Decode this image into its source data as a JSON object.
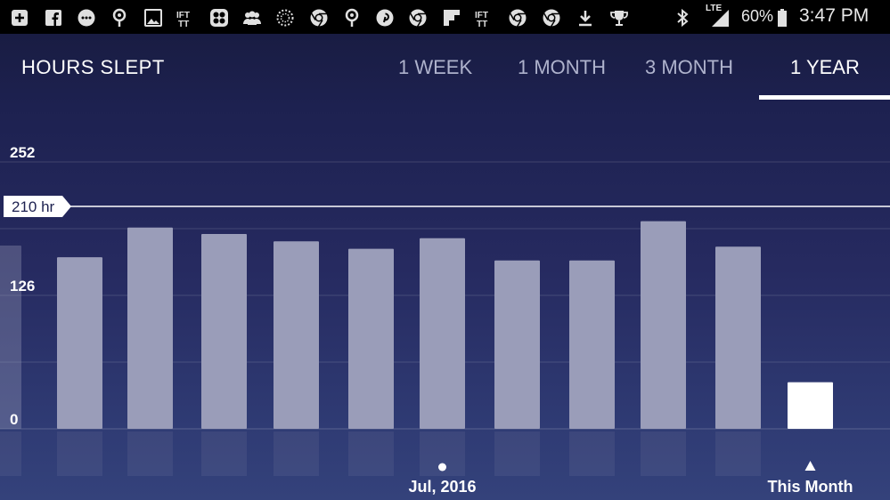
{
  "status_bar": {
    "left_icons": [
      "add-box-icon",
      "facebook-icon",
      "messenger-icon",
      "lock-notification-icon",
      "image-icon",
      "ifttt-icon",
      "app-icon",
      "group-icon",
      "sparkle-icon",
      "chrome-icon",
      "lock-notification-icon",
      "pinterest-icon",
      "chrome-icon",
      "flipboard-icon",
      "ifttt-icon",
      "chrome-icon",
      "chrome-icon",
      "download-icon",
      "trophy-icon"
    ],
    "right_icons": [
      "bluetooth-icon",
      "lte-signal-icon",
      "battery-icon"
    ],
    "network_label": "LTE",
    "battery_percent": "60%",
    "time": "3:47 PM"
  },
  "header": {
    "title": "HOURS SLEPT",
    "tabs": [
      {
        "label": "1 WEEK",
        "active": false
      },
      {
        "label": "1 MONTH",
        "active": false
      },
      {
        "label": "3 MONTH",
        "active": false
      },
      {
        "label": "1 YEAR",
        "active": true
      }
    ]
  },
  "chart_data": {
    "type": "bar",
    "title": "",
    "xlabel": "",
    "ylabel": "",
    "ylim": [
      0,
      252
    ],
    "yticks": [
      0,
      126,
      252
    ],
    "goal_line": {
      "value": 210,
      "label": "210 hr"
    },
    "categories": [
      "",
      "",
      "",
      "",
      "",
      "",
      "",
      "",
      "",
      "",
      "",
      ""
    ],
    "values": [
      173,
      162,
      190,
      184,
      177,
      170,
      180,
      159,
      159,
      196,
      172,
      44
    ],
    "highlight_index": 11,
    "x_labels": [
      {
        "index": 6,
        "label": "Jul, 2016",
        "marker": "dot"
      },
      {
        "index": 11,
        "label": "This Month",
        "marker": "triangle"
      }
    ],
    "grid": true
  },
  "colors": {
    "bar": "#9a9db9",
    "bar_highlight": "#ffffff",
    "goal_line": "#ffffff",
    "tab_inactive": "#aeb2cc",
    "background_top": "#171a3c",
    "background_bottom": "#34427b"
  }
}
